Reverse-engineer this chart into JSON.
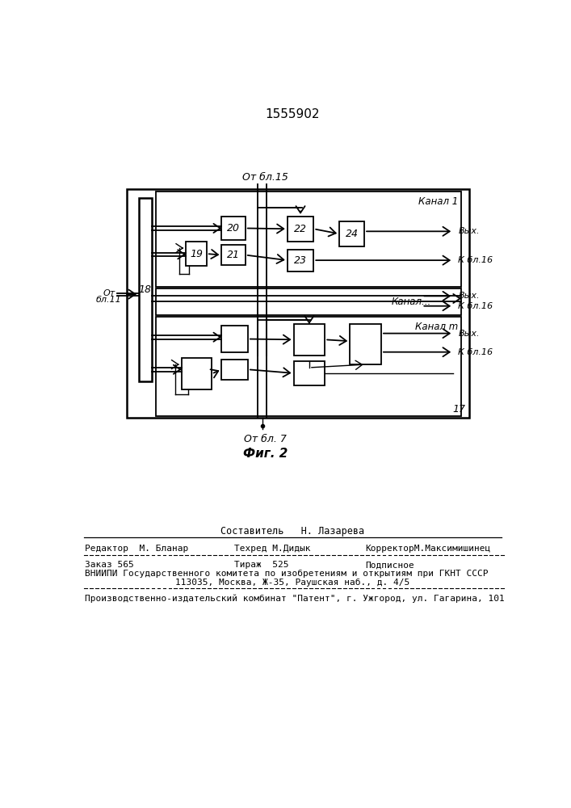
{
  "patent_number": "1555902",
  "fig_label": "Фиг. 2",
  "from_bl15": "От бл.15",
  "from_bl11_line1": "От",
  "from_bl11_line2": "бл.11",
  "from_bl7": "От бл. 7",
  "block18": "18",
  "block19": "19",
  "block20": "20",
  "block21": "21",
  "block22": "22",
  "block23": "23",
  "block24": "24",
  "label17": "17",
  "kanal1": "Канал 1",
  "kanalDots": "Канал...",
  "kanalM": "Канал m",
  "vykh": "Вых.",
  "k_bl16": "К бл.16",
  "bg_color": "#ffffff",
  "footer_line1": "Составитель   Н. Лазарева",
  "footer_editor": "Редактор  М. Бланар",
  "footer_techred": "Техред М.Дидык",
  "footer_corrector": "КорректорМ.Максимишинец",
  "footer_zakaz": "Заказ 565",
  "footer_tirazh": "Тираж  525",
  "footer_podp": "Подписное",
  "footer_vniip": "ВНИИПИ Государственного комитета по изобретениям и открытиям при ГКНТ СССР",
  "footer_address": "113035, Москва, Ж-35, Раушская наб., д. 4/5",
  "footer_factory": "Производственно-издательский комбинат \"Патент\", г. Ужгород, ул. Гагарина, 101"
}
